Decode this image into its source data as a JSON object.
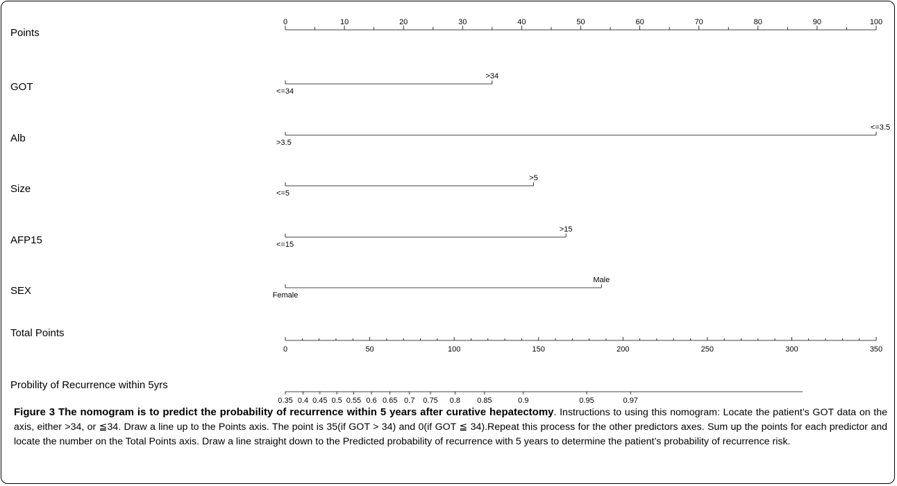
{
  "chart_data": {
    "type": "nomogram",
    "points_axis": {
      "label": "Points",
      "min": 0,
      "max": 100,
      "major_ticks": [
        0,
        10,
        20,
        30,
        40,
        50,
        60,
        70,
        80,
        90,
        100
      ],
      "minor_step": 5
    },
    "predictors": [
      {
        "label": "GOT",
        "low_label": "<=34",
        "high_label": ">34",
        "low_points": 0,
        "high_points": 35
      },
      {
        "label": "Alb",
        "low_label": ">3.5",
        "high_label": "<=3.5",
        "low_points": 0,
        "high_points": 100
      },
      {
        "label": "Size",
        "low_label": "<=5",
        "high_label": ">5",
        "low_points": 0,
        "high_points": 42
      },
      {
        "label": "AFP15",
        "low_label": "<=15",
        "high_label": ">15",
        "low_points": 0,
        "high_points": 47.5
      },
      {
        "label": "SEX",
        "low_label": "Female",
        "high_label": "Male",
        "low_points": 0,
        "high_points": 53.5
      }
    ],
    "total_points_axis": {
      "label": "Total Points",
      "min": 0,
      "max": 350,
      "major_ticks": [
        0,
        50,
        100,
        150,
        200,
        250,
        300,
        350
      ],
      "minor_step": 10
    },
    "probability_axis": {
      "label": "Probility of Recurrence within 5yrs",
      "ticks": [
        {
          "label": "0.35",
          "total_points": 0
        },
        {
          "label": "0.4",
          "total_points": 10.5
        },
        {
          "label": "0.45",
          "total_points": 20.5
        },
        {
          "label": "0.5",
          "total_points": 30.5
        },
        {
          "label": "0.55",
          "total_points": 40.5
        },
        {
          "label": "0.6",
          "total_points": 51
        },
        {
          "label": "0.65",
          "total_points": 62
        },
        {
          "label": "0.7",
          "total_points": 73.5
        },
        {
          "label": "0.75",
          "total_points": 86
        },
        {
          "label": "0.8",
          "total_points": 100.5
        },
        {
          "label": "0.85",
          "total_points": 118
        },
        {
          "label": "0.9",
          "total_points": 141
        },
        {
          "label": "0.95",
          "total_points": 178.5
        },
        {
          "label": "0.97",
          "total_points": 204.5
        }
      ]
    }
  },
  "caption": {
    "title": "Figure 3 The nomogram is to predict the probability of recurrence within 5 years after curative hepatectomy",
    "text": ". Instructions to using this nomogram: Locate the patient’s GOT data on the axis, either >34, or ≦34. Draw a line up to the Points axis. The point is 35(if GOT > 34) and 0(if GOT ≦ 34).Repeat this process for the other predictors axes. Sum up the points for each predictor and locate the number on the Total Points axis. Draw a line straight down to the Predicted probability of recurrence with 5 years to determine the patient’s probability of recurrence risk."
  }
}
